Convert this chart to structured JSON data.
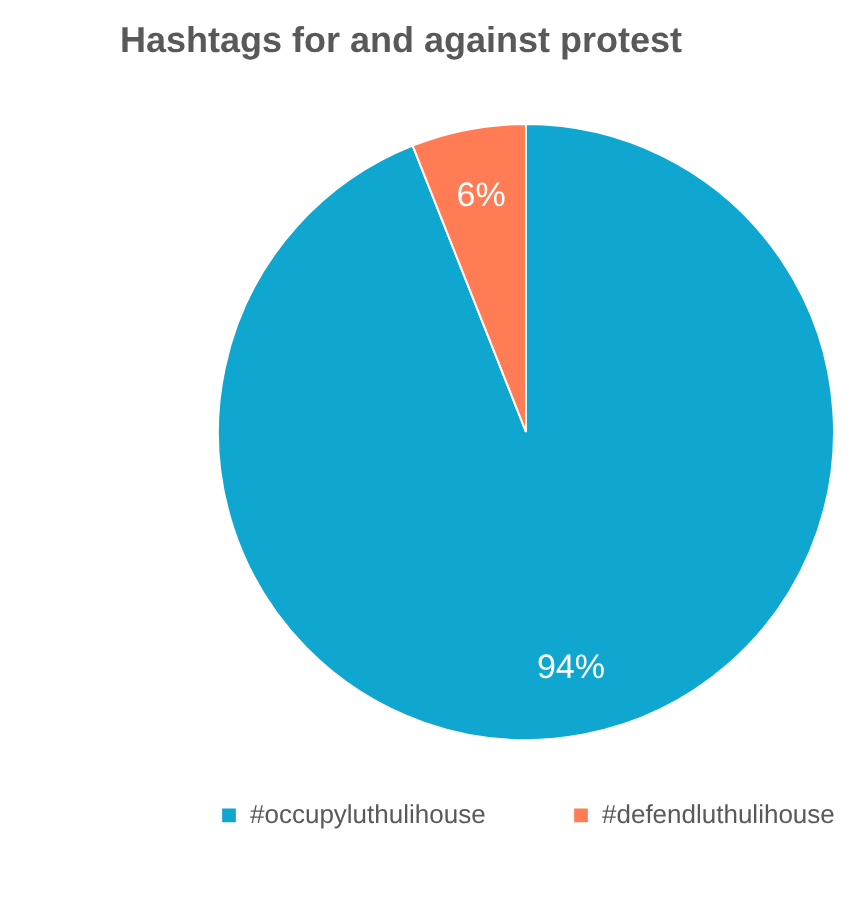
{
  "chart_data": {
    "type": "pie",
    "title": "Hashtags for and against protest",
    "categories": [
      "#occupyluthulihouse",
      "#defendluthulihouse"
    ],
    "values": [
      94,
      6
    ],
    "colors": [
      "#0fa7cf",
      "#ff7c55"
    ],
    "value_labels": [
      "94%",
      "6%"
    ],
    "legend": "bottom"
  }
}
